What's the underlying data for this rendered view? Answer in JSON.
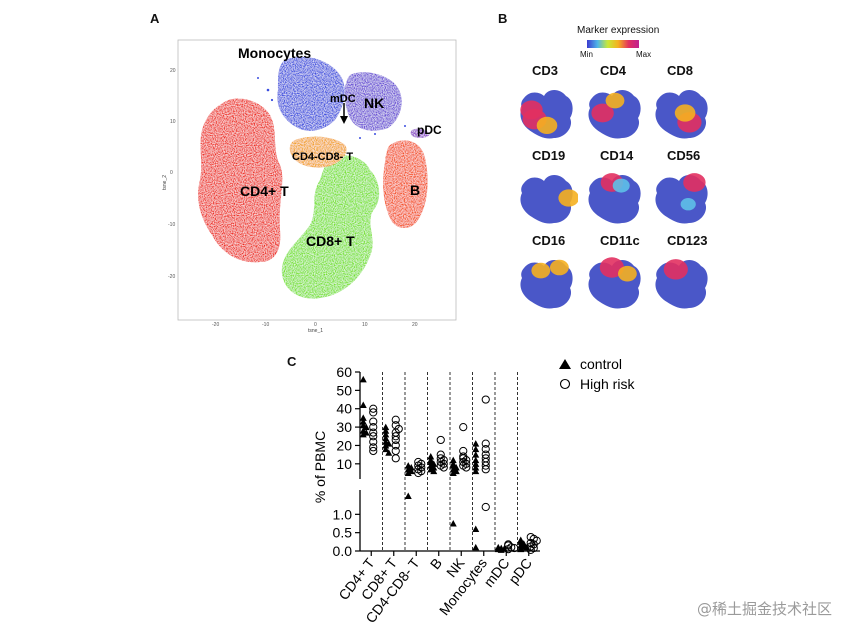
{
  "panels": {
    "a": "A",
    "b": "B",
    "c": "C"
  },
  "tsne": {
    "xaxis_label": "tsne_1",
    "yaxis_label": "tsne_2",
    "x_ticks": [
      "-20",
      "-10",
      "0",
      "10",
      "20"
    ],
    "y_ticks": [
      "20",
      "10",
      "0",
      "-10",
      "-20"
    ],
    "clusters": {
      "monocytes": "Monocytes",
      "mdc": "mDC",
      "nk": "NK",
      "pdc": "pDC",
      "cd4cd8": "CD4-CD8- T",
      "cd4t": "CD4+ T",
      "b": "B",
      "cd8t": "CD8+ T"
    },
    "colors": {
      "cd4t": "#ee2a1c",
      "cd8t": "#78e22a",
      "monocytes": "#3a4ddf",
      "nk": "#6a4ed6",
      "b": "#f4511e",
      "cd4cd8": "#f2a21a",
      "pdc": "#8a3cc8"
    }
  },
  "markers": {
    "legend_title": "Marker expression",
    "min_label": "Min",
    "max_label": "Max",
    "names": [
      "CD3",
      "CD4",
      "CD8",
      "CD19",
      "CD14",
      "CD56",
      "CD16",
      "CD11c",
      "CD123"
    ]
  },
  "chart_data": {
    "type": "scatter",
    "ylabel": "% of PBMC",
    "y_upper_ticks": [
      "60",
      "50",
      "40",
      "30",
      "20",
      "10"
    ],
    "y_lower_ticks": [
      "1.0",
      "0.5",
      "0.0"
    ],
    "ylim_upper": [
      5,
      60
    ],
    "ylim_lower": [
      0,
      1.5
    ],
    "categories": [
      "CD4+ T",
      "CD8+ T",
      "CD4-CD8- T",
      "B",
      "NK",
      "Monocytes",
      "mDC",
      "pDC"
    ],
    "legend": {
      "control": "control",
      "high_risk": "High risk"
    },
    "series": [
      {
        "name": "control",
        "marker": "triangle",
        "values": [
          [
            56,
            42,
            35,
            33,
            31,
            30,
            28,
            27,
            26
          ],
          [
            30,
            28,
            26,
            24,
            22,
            21,
            20,
            18,
            16
          ],
          [
            9,
            8,
            7,
            6,
            5,
            4
          ],
          [
            14,
            12,
            11,
            10,
            9,
            8,
            7,
            6
          ],
          [
            12,
            10,
            9,
            8,
            7,
            6,
            5,
            0.75
          ],
          [
            21,
            18,
            15,
            12,
            10,
            8,
            6,
            0.6,
            0.1
          ],
          [
            0.1,
            0.08,
            0.06,
            0.05,
            0.03
          ],
          [
            0.3,
            0.25,
            0.2,
            0.15,
            0.12,
            0.1,
            0.08,
            0.05
          ]
        ]
      },
      {
        "name": "High risk",
        "marker": "circle",
        "values": [
          [
            40,
            38,
            33,
            30,
            27,
            25,
            22,
            19,
            17
          ],
          [
            34,
            31,
            29,
            27,
            25,
            23,
            20,
            17,
            13
          ],
          [
            11,
            10,
            9,
            8,
            7,
            6,
            5
          ],
          [
            23,
            15,
            13,
            12,
            11,
            10,
            9,
            8
          ],
          [
            30,
            17,
            14,
            13,
            12,
            11,
            10,
            9,
            8
          ],
          [
            45,
            21,
            18,
            15,
            13,
            11,
            9,
            7,
            1.2
          ],
          [
            0.18,
            0.15,
            0.1,
            0.08,
            0.05
          ],
          [
            0.38,
            0.33,
            0.28,
            0.22,
            0.18,
            0.12,
            0.08,
            0.03
          ]
        ]
      }
    ]
  },
  "watermark": "@稀土掘金技术社区"
}
